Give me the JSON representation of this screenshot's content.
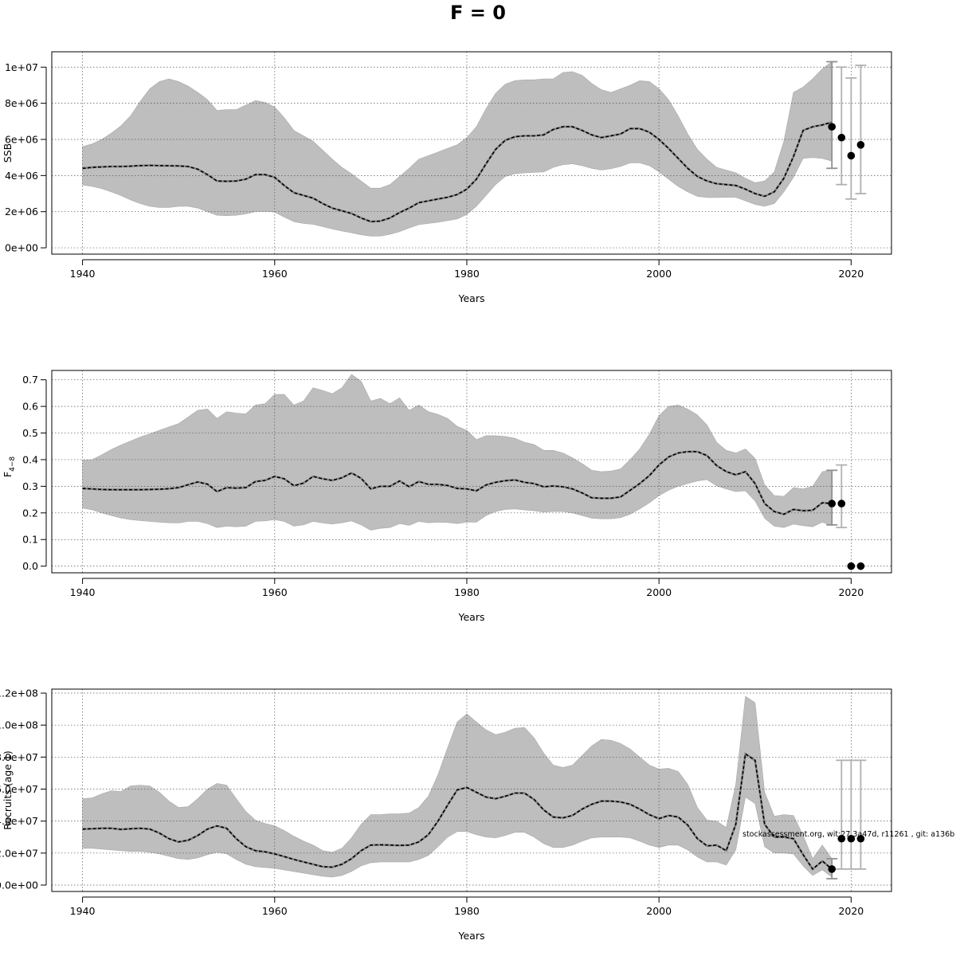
{
  "title": "F = 0",
  "watermark": "stockassessment.org, wit:27.3a47d, r11261 , git: a136b",
  "colors": {
    "band": "#bebebe",
    "band_edge": "#a8a8a8",
    "line": "#000000",
    "grid": "#555555",
    "errorbar": "#b0b0b0",
    "errorbar_dark": "#909090"
  },
  "chart_data": [
    {
      "type": "area",
      "id": "ssb",
      "xlabel": "Years",
      "ylabel": "SSB",
      "xlim": [
        1936.8,
        2024.2
      ],
      "ylim": [
        -350000,
        10850000
      ],
      "xticks": [
        1940,
        1960,
        1980,
        2000,
        2020
      ],
      "xtick_labels": [
        "1940",
        "1960",
        "1980",
        "2000",
        "2020"
      ],
      "yticks": [
        0,
        2000000,
        4000000,
        6000000,
        8000000,
        10000000
      ],
      "ytick_labels": [
        "0e+00",
        "2e+06",
        "4e+06",
        "6e+06",
        "8e+06",
        "1e+07"
      ],
      "years": [
        1940,
        1941,
        1942,
        1943,
        1944,
        1945,
        1946,
        1947,
        1948,
        1949,
        1950,
        1951,
        1952,
        1953,
        1954,
        1955,
        1956,
        1957,
        1958,
        1959,
        1960,
        1961,
        1962,
        1963,
        1964,
        1965,
        1966,
        1967,
        1968,
        1969,
        1970,
        1971,
        1972,
        1973,
        1974,
        1975,
        1976,
        1977,
        1978,
        1979,
        1980,
        1981,
        1982,
        1983,
        1984,
        1985,
        1986,
        1987,
        1988,
        1989,
        1990,
        1991,
        1992,
        1993,
        1994,
        1995,
        1996,
        1997,
        1998,
        1999,
        2000,
        2001,
        2002,
        2003,
        2004,
        2005,
        2006,
        2007,
        2008,
        2009,
        2010,
        2011,
        2012,
        2013,
        2014,
        2015,
        2016,
        2017,
        2018
      ],
      "estimate": [
        4400000,
        4450000,
        4480000,
        4500000,
        4500000,
        4520000,
        4550000,
        4560000,
        4550000,
        4540000,
        4530000,
        4500000,
        4350000,
        4050000,
        3700000,
        3680000,
        3700000,
        3800000,
        4050000,
        4050000,
        3900000,
        3450000,
        3050000,
        2900000,
        2750000,
        2450000,
        2200000,
        2050000,
        1900000,
        1650000,
        1450000,
        1480000,
        1650000,
        1950000,
        2200000,
        2500000,
        2600000,
        2700000,
        2800000,
        2950000,
        3250000,
        3800000,
        4650000,
        5450000,
        5950000,
        6150000,
        6200000,
        6200000,
        6250000,
        6550000,
        6700000,
        6700000,
        6500000,
        6250000,
        6100000,
        6200000,
        6300000,
        6600000,
        6600000,
        6400000,
        6000000,
        5500000,
        4950000,
        4400000,
        3950000,
        3700000,
        3550000,
        3500000,
        3450000,
        3250000,
        3000000,
        2850000,
        3100000,
        3850000,
        5050000,
        6500000,
        6700000,
        6800000,
        6950000
      ],
      "lower": [
        3480000,
        3400000,
        3280000,
        3100000,
        2900000,
        2650000,
        2450000,
        2300000,
        2230000,
        2230000,
        2300000,
        2300000,
        2200000,
        2000000,
        1800000,
        1780000,
        1800000,
        1880000,
        2000000,
        2020000,
        1980000,
        1700000,
        1450000,
        1350000,
        1300000,
        1180000,
        1040000,
        930000,
        830000,
        720000,
        650000,
        650000,
        750000,
        900000,
        1100000,
        1280000,
        1350000,
        1420000,
        1500000,
        1600000,
        1850000,
        2300000,
        2900000,
        3500000,
        3950000,
        4100000,
        4150000,
        4180000,
        4200000,
        4450000,
        4600000,
        4650000,
        4550000,
        4400000,
        4300000,
        4380000,
        4500000,
        4700000,
        4700000,
        4550000,
        4200000,
        3800000,
        3400000,
        3100000,
        2850000,
        2780000,
        2780000,
        2800000,
        2800000,
        2600000,
        2400000,
        2300000,
        2450000,
        3100000,
        3900000,
        4950000,
        5000000,
        4950000,
        4800000
      ],
      "upper": [
        5600000,
        5750000,
        6000000,
        6350000,
        6750000,
        7300000,
        8100000,
        8800000,
        9200000,
        9350000,
        9200000,
        8950000,
        8600000,
        8200000,
        7600000,
        7650000,
        7650000,
        7900000,
        8150000,
        8050000,
        7800000,
        7200000,
        6500000,
        6200000,
        5900000,
        5400000,
        4900000,
        4450000,
        4100000,
        3700000,
        3300000,
        3300000,
        3500000,
        3950000,
        4400000,
        4900000,
        5100000,
        5300000,
        5500000,
        5700000,
        6100000,
        6700000,
        7700000,
        8550000,
        9050000,
        9250000,
        9300000,
        9300000,
        9350000,
        9350000,
        9700000,
        9750000,
        9550000,
        9100000,
        8750000,
        8600000,
        8800000,
        9000000,
        9250000,
        9200000,
        8800000,
        8200000,
        7300000,
        6300000,
        5450000,
        4900000,
        4450000,
        4300000,
        4150000,
        3850000,
        3600000,
        3700000,
        4200000,
        5900000,
        8600000,
        8900000,
        9350000,
        9900000,
        10300000
      ],
      "forecast": [
        {
          "year": 2018,
          "value": 6700000,
          "low": 4400000,
          "high": 10300000
        },
        {
          "year": 2019,
          "value": 6100000,
          "low": 3500000,
          "high": 10000000
        },
        {
          "year": 2020,
          "value": 5100000,
          "low": 2700000,
          "high": 9400000
        },
        {
          "year": 2021,
          "value": 5700000,
          "low": 3000000,
          "high": 10100000
        }
      ]
    },
    {
      "type": "area",
      "id": "fbar",
      "xlabel": "Years",
      "ylabel": "F",
      "ylabel_sub": "4−8",
      "xlim": [
        1936.8,
        2024.2
      ],
      "ylim": [
        -0.025,
        0.735
      ],
      "xticks": [
        1940,
        1960,
        1980,
        2000,
        2020
      ],
      "xtick_labels": [
        "1940",
        "1960",
        "1980",
        "2000",
        "2020"
      ],
      "yticks": [
        0,
        0.1,
        0.2,
        0.3,
        0.4,
        0.5,
        0.6,
        0.7
      ],
      "ytick_labels": [
        "0.0",
        "0.1",
        "0.2",
        "0.3",
        "0.4",
        "0.5",
        "0.6",
        "0.7"
      ],
      "years": [
        1940,
        1941,
        1942,
        1943,
        1944,
        1945,
        1946,
        1947,
        1948,
        1949,
        1950,
        1951,
        1952,
        1953,
        1954,
        1955,
        1956,
        1957,
        1958,
        1959,
        1960,
        1961,
        1962,
        1963,
        1964,
        1965,
        1966,
        1967,
        1968,
        1969,
        1970,
        1971,
        1972,
        1973,
        1974,
        1975,
        1976,
        1977,
        1978,
        1979,
        1980,
        1981,
        1982,
        1983,
        1984,
        1985,
        1986,
        1987,
        1988,
        1989,
        1990,
        1991,
        1992,
        1993,
        1994,
        1995,
        1996,
        1997,
        1998,
        1999,
        2000,
        2001,
        2002,
        2003,
        2004,
        2005,
        2006,
        2007,
        2008,
        2009,
        2010,
        2011,
        2012,
        2013,
        2014,
        2015,
        2016,
        2017,
        2018
      ],
      "estimate": [
        0.292,
        0.29,
        0.288,
        0.287,
        0.287,
        0.287,
        0.287,
        0.288,
        0.289,
        0.291,
        0.295,
        0.306,
        0.316,
        0.308,
        0.28,
        0.295,
        0.293,
        0.295,
        0.318,
        0.322,
        0.337,
        0.328,
        0.302,
        0.312,
        0.337,
        0.328,
        0.322,
        0.332,
        0.35,
        0.33,
        0.29,
        0.3,
        0.3,
        0.32,
        0.298,
        0.318,
        0.307,
        0.307,
        0.303,
        0.292,
        0.29,
        0.283,
        0.305,
        0.315,
        0.321,
        0.324,
        0.315,
        0.31,
        0.298,
        0.301,
        0.298,
        0.29,
        0.275,
        0.257,
        0.255,
        0.255,
        0.26,
        0.285,
        0.31,
        0.34,
        0.38,
        0.41,
        0.425,
        0.43,
        0.43,
        0.415,
        0.378,
        0.355,
        0.343,
        0.355,
        0.31,
        0.235,
        0.205,
        0.195,
        0.213,
        0.208,
        0.21,
        0.238,
        0.235
      ],
      "lower": [
        0.218,
        0.212,
        0.2,
        0.19,
        0.181,
        0.175,
        0.171,
        0.168,
        0.165,
        0.163,
        0.162,
        0.168,
        0.168,
        0.16,
        0.145,
        0.15,
        0.148,
        0.15,
        0.168,
        0.17,
        0.175,
        0.168,
        0.15,
        0.155,
        0.168,
        0.162,
        0.158,
        0.163,
        0.17,
        0.155,
        0.135,
        0.142,
        0.145,
        0.16,
        0.153,
        0.168,
        0.163,
        0.165,
        0.164,
        0.16,
        0.165,
        0.165,
        0.19,
        0.205,
        0.213,
        0.215,
        0.211,
        0.208,
        0.203,
        0.205,
        0.205,
        0.2,
        0.19,
        0.18,
        0.178,
        0.178,
        0.182,
        0.195,
        0.215,
        0.238,
        0.265,
        0.285,
        0.3,
        0.31,
        0.32,
        0.325,
        0.302,
        0.29,
        0.28,
        0.283,
        0.245,
        0.18,
        0.15,
        0.145,
        0.158,
        0.152,
        0.148,
        0.165,
        0.152
      ],
      "upper": [
        0.398,
        0.4,
        0.418,
        0.438,
        0.455,
        0.47,
        0.485,
        0.497,
        0.51,
        0.523,
        0.535,
        0.56,
        0.585,
        0.59,
        0.555,
        0.58,
        0.575,
        0.572,
        0.605,
        0.61,
        0.645,
        0.645,
        0.605,
        0.62,
        0.67,
        0.66,
        0.648,
        0.67,
        0.72,
        0.695,
        0.62,
        0.63,
        0.61,
        0.632,
        0.585,
        0.605,
        0.58,
        0.57,
        0.555,
        0.525,
        0.51,
        0.475,
        0.49,
        0.49,
        0.487,
        0.48,
        0.465,
        0.457,
        0.435,
        0.435,
        0.425,
        0.407,
        0.385,
        0.36,
        0.355,
        0.357,
        0.365,
        0.4,
        0.44,
        0.495,
        0.565,
        0.6,
        0.605,
        0.59,
        0.568,
        0.53,
        0.465,
        0.435,
        0.425,
        0.44,
        0.405,
        0.305,
        0.265,
        0.262,
        0.295,
        0.29,
        0.3,
        0.355,
        0.36
      ],
      "forecast": [
        {
          "year": 2018,
          "value": 0.235,
          "low": 0.155,
          "high": 0.36
        },
        {
          "year": 2019,
          "value": 0.235,
          "low": 0.145,
          "high": 0.38
        },
        {
          "year": 2020,
          "value": 0.0
        },
        {
          "year": 2021,
          "value": 0.0
        }
      ]
    },
    {
      "type": "area",
      "id": "recruits",
      "xlabel": "Years",
      "ylabel": "Recruits (age 1)",
      "xlim": [
        1936.8,
        2024.2
      ],
      "ylim": [
        -4000000,
        122500000
      ],
      "xticks": [
        1940,
        1960,
        1980,
        2000,
        2020
      ],
      "xtick_labels": [
        "1940",
        "1960",
        "1980",
        "2000",
        "2020"
      ],
      "yticks": [
        0,
        20000000,
        40000000,
        60000000,
        80000000,
        100000000,
        120000000
      ],
      "ytick_labels": [
        "0.0e+00",
        "2.0e+07",
        "4.0e+07",
        "6.0e+07",
        "8.0e+07",
        "1.0e+08",
        "1.2e+08"
      ],
      "years": [
        1940,
        1941,
        1942,
        1943,
        1944,
        1945,
        1946,
        1947,
        1948,
        1949,
        1950,
        1951,
        1952,
        1953,
        1954,
        1955,
        1956,
        1957,
        1958,
        1959,
        1960,
        1961,
        1962,
        1963,
        1964,
        1965,
        1966,
        1967,
        1968,
        1969,
        1970,
        1971,
        1972,
        1973,
        1974,
        1975,
        1976,
        1977,
        1978,
        1979,
        1980,
        1981,
        1982,
        1983,
        1984,
        1985,
        1986,
        1987,
        1988,
        1989,
        1990,
        1991,
        1992,
        1993,
        1994,
        1995,
        1996,
        1997,
        1998,
        1999,
        2000,
        2001,
        2002,
        2003,
        2004,
        2005,
        2006,
        2007,
        2008,
        2009,
        2010,
        2011,
        2012,
        2013,
        2014,
        2015,
        2016,
        2017,
        2018
      ],
      "estimate": [
        35000000,
        35200000,
        35500000,
        35500000,
        34800000,
        35200000,
        35500000,
        35000000,
        32500000,
        29000000,
        27000000,
        28000000,
        31000000,
        35000000,
        37000000,
        35500000,
        29000000,
        24000000,
        21500000,
        20800000,
        19500000,
        17800000,
        16000000,
        14500000,
        13000000,
        11500000,
        11200000,
        13000000,
        16500000,
        21500000,
        25000000,
        25200000,
        25000000,
        24800000,
        25000000,
        27000000,
        31500000,
        40000000,
        50000000,
        59500000,
        61000000,
        58000000,
        55000000,
        54000000,
        55500000,
        57500000,
        57500000,
        53500000,
        47000000,
        42500000,
        42000000,
        43500000,
        47500000,
        50500000,
        52500000,
        52500000,
        52000000,
        50500000,
        47500000,
        44000000,
        41500000,
        43500000,
        42500000,
        37500000,
        29000000,
        24500000,
        25000000,
        21500000,
        38000000,
        82000000,
        78000000,
        38000000,
        30000000,
        30000000,
        29000000,
        19000000,
        10000000,
        15000000,
        10000000
      ],
      "lower": [
        23000000,
        23000000,
        22500000,
        22000000,
        21500000,
        21000000,
        21000000,
        20500000,
        19500000,
        18000000,
        16500000,
        16000000,
        17000000,
        19000000,
        20500000,
        19500000,
        16000000,
        13000000,
        11500000,
        11000000,
        10500000,
        9500000,
        8500000,
        7500000,
        6500000,
        5500000,
        5000000,
        6000000,
        8500000,
        12000000,
        14000000,
        14500000,
        14500000,
        14500000,
        14500000,
        16000000,
        18500000,
        24000000,
        30000000,
        33500000,
        33500000,
        31500000,
        30000000,
        29500000,
        31000000,
        33000000,
        33000000,
        30000000,
        26000000,
        23500000,
        23500000,
        25000000,
        27500000,
        29500000,
        30000000,
        30000000,
        30000000,
        29500000,
        27500000,
        25000000,
        23500000,
        25000000,
        25000000,
        22000000,
        17500000,
        14500000,
        14500000,
        12500000,
        22000000,
        55000000,
        51000000,
        24000000,
        20000000,
        20000000,
        19500000,
        12000000,
        6000000,
        9500000,
        5000000
      ],
      "upper": [
        54000000,
        54500000,
        57000000,
        59000000,
        58500000,
        62000000,
        62500000,
        62000000,
        58000000,
        52500000,
        48500000,
        49000000,
        54000000,
        60000000,
        63500000,
        62500000,
        54000000,
        46000000,
        40500000,
        38500000,
        37000000,
        34000000,
        30500000,
        27500000,
        25000000,
        21500000,
        20500000,
        23000000,
        29500000,
        38000000,
        44000000,
        44000000,
        44500000,
        44500000,
        45000000,
        48500000,
        55500000,
        69000000,
        86000000,
        102000000,
        107000000,
        102000000,
        97000000,
        94000000,
        95500000,
        98000000,
        98500000,
        92000000,
        82500000,
        75000000,
        73500000,
        75000000,
        81000000,
        87000000,
        91000000,
        90500000,
        88500000,
        85000000,
        80000000,
        75000000,
        72500000,
        73000000,
        71000000,
        63000000,
        48500000,
        40500000,
        40000000,
        36000000,
        63000000,
        118000000,
        114000000,
        58000000,
        43000000,
        44000000,
        43500000,
        31000000,
        16500000,
        25000000,
        16500000
      ],
      "forecast": [
        {
          "year": 2018,
          "value": 10000000,
          "low": 4000000,
          "high": 16500000
        },
        {
          "year": 2019,
          "value": 29000000,
          "low": 10000000,
          "high": 78000000
        },
        {
          "year": 2020,
          "value": 29000000,
          "low": 10000000,
          "high": 78000000
        },
        {
          "year": 2021,
          "value": 29000000,
          "low": 10000000,
          "high": 78000000
        }
      ]
    }
  ]
}
